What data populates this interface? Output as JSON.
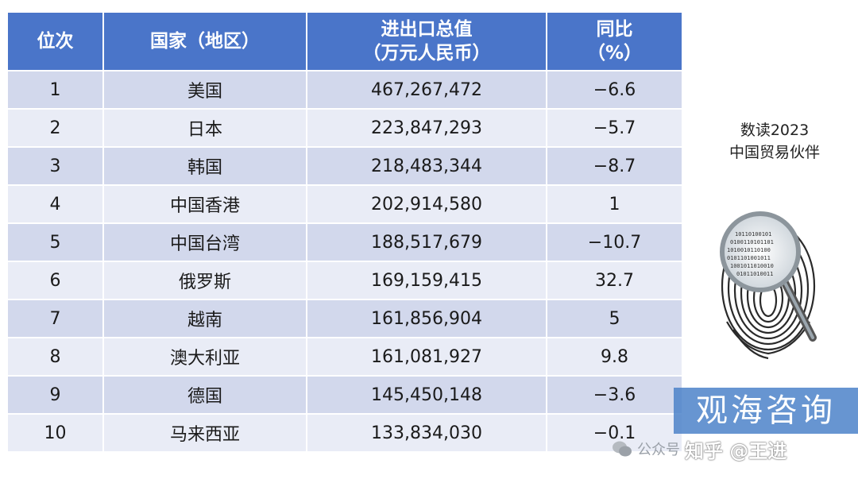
{
  "table": {
    "headers": [
      {
        "line1": "位次",
        "line2": ""
      },
      {
        "line1": "国家（地区）",
        "line2": ""
      },
      {
        "line1": "进出口总值",
        "line2": "（万元人民币）"
      },
      {
        "line1": "同比",
        "line2": "（%）"
      }
    ],
    "rows": [
      {
        "rank": "1",
        "country": "美国",
        "value": "467,267,472",
        "yoy": "−6.6"
      },
      {
        "rank": "2",
        "country": "日本",
        "value": "223,847,293",
        "yoy": "−5.7"
      },
      {
        "rank": "3",
        "country": "韩国",
        "value": "218,483,344",
        "yoy": "−8.7"
      },
      {
        "rank": "4",
        "country": "中国香港",
        "value": "202,914,580",
        "yoy": "1"
      },
      {
        "rank": "5",
        "country": "中国台湾",
        "value": "188,517,679",
        "yoy": "−10.7"
      },
      {
        "rank": "6",
        "country": "俄罗斯",
        "value": "169,159,415",
        "yoy": "32.7"
      },
      {
        "rank": "7",
        "country": "越南",
        "value": "161,856,904",
        "yoy": "5"
      },
      {
        "rank": "8",
        "country": "澳大利亚",
        "value": "161,081,927",
        "yoy": "9.8"
      },
      {
        "rank": "9",
        "country": "德国",
        "value": "145,450,148",
        "yoy": "−3.6"
      },
      {
        "rank": "10",
        "country": "马来西亚",
        "value": "133,834,030",
        "yoy": "−0.1"
      }
    ]
  },
  "caption": {
    "line1": "数读2023",
    "line2": "中国贸易伙伴"
  },
  "watermarks": {
    "brand": "观海咨询",
    "wechat_prefix": "公众号",
    "zhihu": "知乎 @王进"
  },
  "colors": {
    "header_bg": "#4a75c9",
    "row_dark": "#d2d8ec",
    "row_light": "#e9ecf6"
  }
}
